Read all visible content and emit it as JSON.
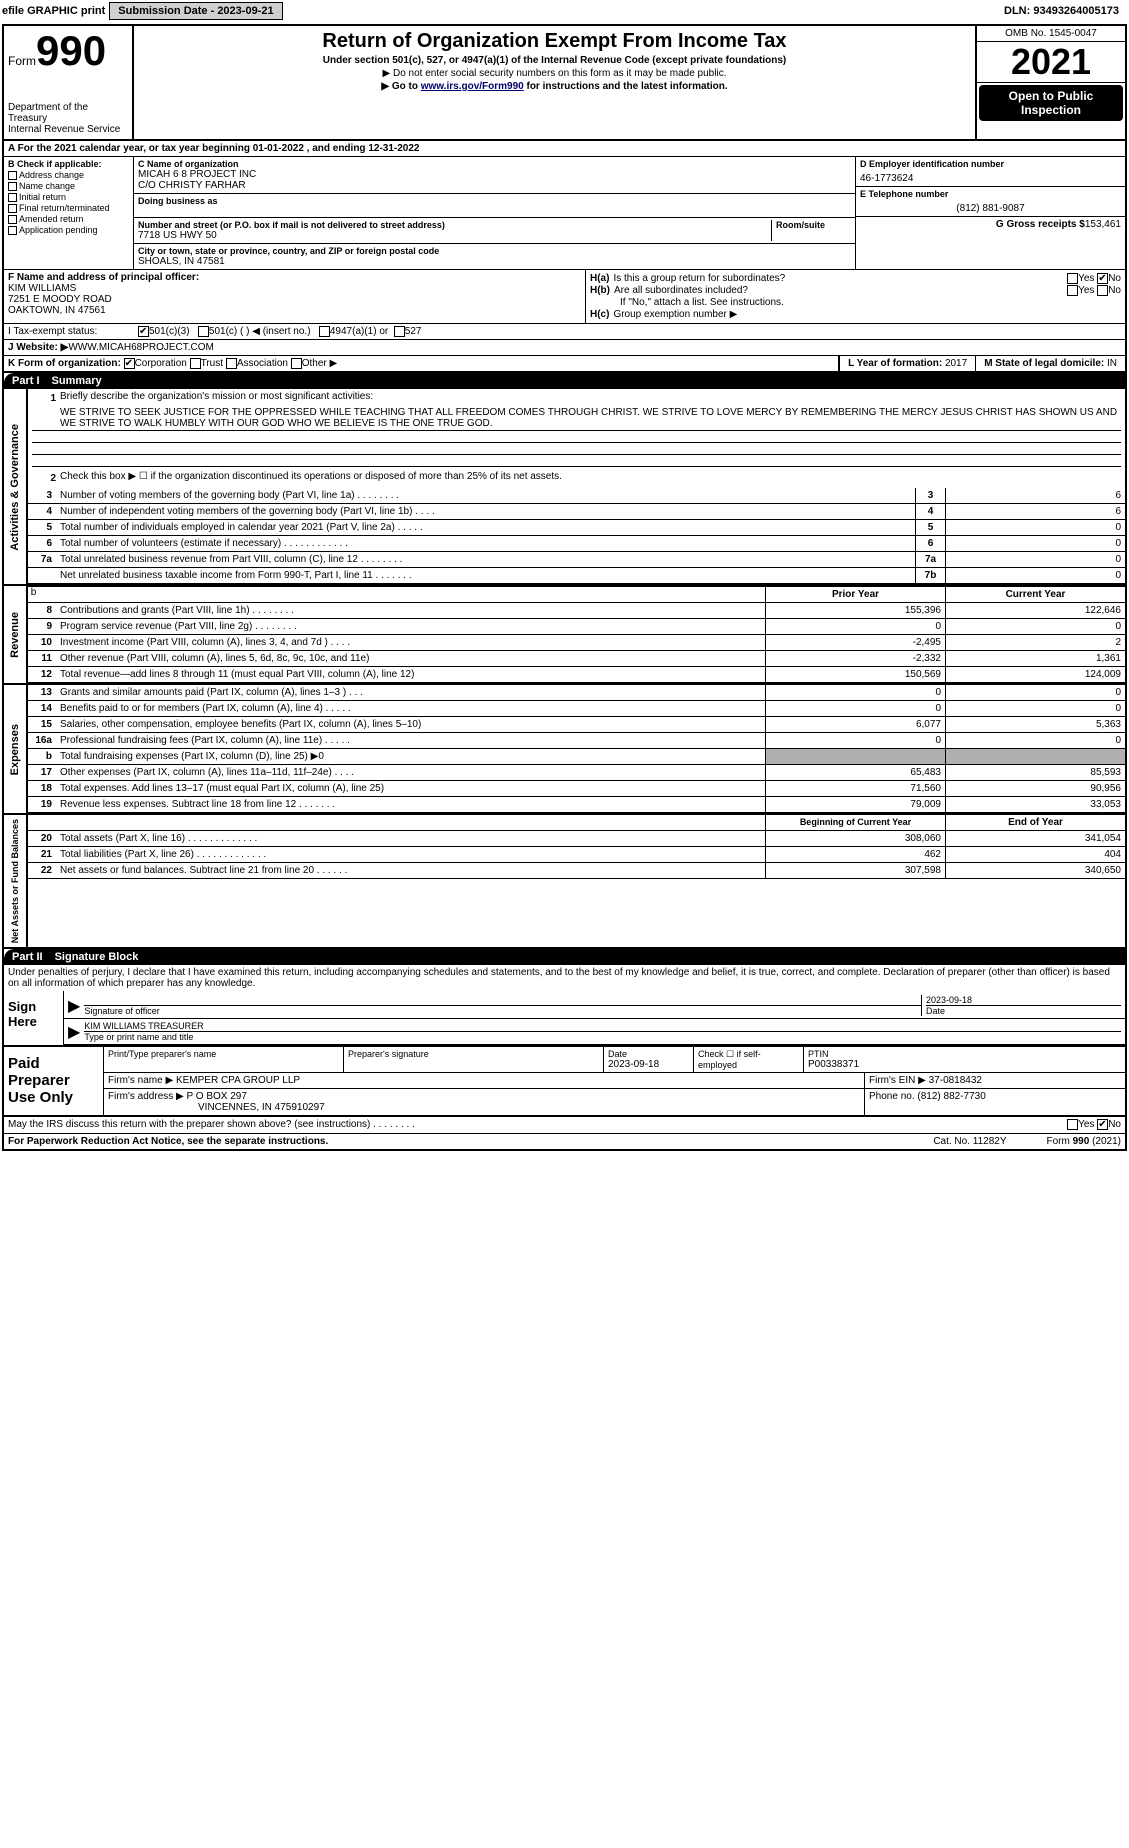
{
  "topbar": {
    "efile": "efile GRAPHIC print",
    "submission": "Submission Date - 2023-09-21",
    "dln": "DLN: 93493264005173"
  },
  "header": {
    "form_label": "Form",
    "form_number": "990",
    "title": "Return of Organization Exempt From Income Tax",
    "subtitle": "Under section 501(c), 527, or 4947(a)(1) of the Internal Revenue Code (except private foundations)",
    "note1": "▶ Do not enter social security numbers on this form as it may be made public.",
    "note2_pre": "▶ Go to ",
    "note2_link": "www.irs.gov/Form990",
    "note2_post": " for instructions and the latest information.",
    "dept": "Department of the Treasury\nInternal Revenue Service",
    "omb": "OMB No. 1545-0047",
    "year": "2021",
    "open": "Open to Public Inspection"
  },
  "row_a": {
    "text": "A For the 2021 calendar year, or tax year beginning 01-01-2022   , and ending 12-31-2022"
  },
  "col_b": {
    "label": "B Check if applicable:",
    "items": [
      "Address change",
      "Name change",
      "Initial return",
      "Final return/terminated",
      "Amended return",
      "Application pending"
    ]
  },
  "col_c": {
    "name_label": "C Name of organization",
    "name": "MICAH 6 8 PROJECT INC",
    "care_of": "C/O CHRISTY FARHAR",
    "dba_label": "Doing business as",
    "addr_label": "Number and street (or P.O. box if mail is not delivered to street address)",
    "room_label": "Room/suite",
    "address": "7718 US HWY 50",
    "city_label": "City or town, state or province, country, and ZIP or foreign postal code",
    "city": "SHOALS, IN  47581"
  },
  "col_d": {
    "ein_label": "D Employer identification number",
    "ein": "46-1773624",
    "phone_label": "E Telephone number",
    "phone": "(812) 881-9087",
    "gross_label": "G Gross receipts $",
    "gross": "153,461"
  },
  "col_f": {
    "label": "F  Name and address of principal officer:",
    "name": "KIM WILLIAMS",
    "addr1": "7251 E MOODY ROAD",
    "addr2": "OAKTOWN, IN  47561"
  },
  "col_h": {
    "ha_label": "H(a)",
    "ha_text": "Is this a group return for subordinates?",
    "hb_label": "H(b)",
    "hb_text": "Are all subordinates included?",
    "hb_note": "If \"No,\" attach a list. See instructions.",
    "hc_label": "H(c)",
    "hc_text": "Group exemption number ▶"
  },
  "row_i": {
    "label": "I   Tax-exempt status:",
    "opts": [
      "501(c)(3)",
      "501(c) (   ) ◀ (insert no.)",
      "4947(a)(1) or",
      "527"
    ]
  },
  "row_j": {
    "label": "J   Website: ▶",
    "value": " WWW.MICAH68PROJECT.COM"
  },
  "row_k": {
    "label": "K Form of organization:",
    "opts": [
      "Corporation",
      "Trust",
      "Association",
      "Other ▶"
    ]
  },
  "row_lm": {
    "l_label": "L Year of formation: ",
    "l_val": "2017",
    "m_label": "M State of legal domicile: ",
    "m_val": "IN"
  },
  "part1": {
    "label": "Part I",
    "title": "Summary"
  },
  "governance": {
    "vlabel": "Activities & Governance",
    "q1_label": "1",
    "q1_text": "Briefly describe the organization's mission or most significant activities:",
    "mission": "WE STRIVE TO SEEK JUSTICE FOR THE OPPRESSED WHILE TEACHING THAT ALL FREEDOM COMES THROUGH CHRIST. WE STRIVE TO LOVE MERCY BY REMEMBERING THE MERCY JESUS CHRIST HAS SHOWN US AND WE STRIVE TO WALK HUMBLY WITH OUR GOD WHO WE BELIEVE IS THE ONE TRUE GOD.",
    "q2": "Check this box ▶ ☐ if the organization discontinued its operations or disposed of more than 25% of its net assets.",
    "rows": [
      {
        "n": "3",
        "t": "Number of voting members of the governing body (Part VI, line 1a)   .    .    .    .    .    .    .    .",
        "box": "3",
        "v": "6"
      },
      {
        "n": "4",
        "t": "Number of independent voting members of the governing body (Part VI, line 1b)    .    .    .    .",
        "box": "4",
        "v": "6"
      },
      {
        "n": "5",
        "t": "Total number of individuals employed in calendar year 2021 (Part V, line 2a)   .    .    .    .    .",
        "box": "5",
        "v": "0"
      },
      {
        "n": "6",
        "t": "Total number of volunteers (estimate if necessary)    .    .    .    .    .    .    .    .    .    .    .    .",
        "box": "6",
        "v": "0"
      },
      {
        "n": "7a",
        "t": "Total unrelated business revenue from Part VIII, column (C), line 12   .    .    .    .    .    .    .    .",
        "box": "7a",
        "v": "0"
      },
      {
        "n": "",
        "t": "Net unrelated business taxable income from Form 990-T, Part I, line 11   .    .    .    .    .    .    .",
        "box": "7b",
        "v": "0"
      }
    ]
  },
  "revenue": {
    "vlabel": "Revenue",
    "header_prior": "Prior Year",
    "header_current": "Current Year",
    "rows": [
      {
        "n": "8",
        "t": "Contributions and grants (Part VIII, line 1h)    .    .    .    .    .    .    .    .",
        "p": "155,396",
        "c": "122,646"
      },
      {
        "n": "9",
        "t": "Program service revenue (Part VIII, line 2g)   .    .    .    .    .    .    .    .",
        "p": "0",
        "c": "0"
      },
      {
        "n": "10",
        "t": "Investment income (Part VIII, column (A), lines 3, 4, and 7d )    .    .    .    .",
        "p": "-2,495",
        "c": "2"
      },
      {
        "n": "11",
        "t": "Other revenue (Part VIII, column (A), lines 5, 6d, 8c, 9c, 10c, and 11e)",
        "p": "-2,332",
        "c": "1,361"
      },
      {
        "n": "12",
        "t": "Total revenue—add lines 8 through 11 (must equal Part VIII, column (A), line 12)",
        "p": "150,569",
        "c": "124,009"
      }
    ]
  },
  "expenses": {
    "vlabel": "Expenses",
    "rows": [
      {
        "n": "13",
        "t": "Grants and similar amounts paid (Part IX, column (A), lines 1–3 )   .    .    .",
        "p": "0",
        "c": "0"
      },
      {
        "n": "14",
        "t": "Benefits paid to or for members (Part IX, column (A), line 4)   .    .    .    .    .",
        "p": "0",
        "c": "0"
      },
      {
        "n": "15",
        "t": "Salaries, other compensation, employee benefits (Part IX, column (A), lines 5–10)",
        "p": "6,077",
        "c": "5,363"
      },
      {
        "n": "16a",
        "t": "Professional fundraising fees (Part IX, column (A), line 11e)   .    .    .    .    .",
        "p": "0",
        "c": "0"
      },
      {
        "n": "b",
        "t": "Total fundraising expenses (Part IX, column (D), line 25) ▶0",
        "p": "",
        "c": "",
        "gray": true
      },
      {
        "n": "17",
        "t": "Other expenses (Part IX, column (A), lines 11a–11d, 11f–24e)    .    .    .    .",
        "p": "65,483",
        "c": "85,593"
      },
      {
        "n": "18",
        "t": "Total expenses. Add lines 13–17 (must equal Part IX, column (A), line 25)",
        "p": "71,560",
        "c": "90,956"
      },
      {
        "n": "19",
        "t": "Revenue less expenses. Subtract line 18 from line 12  .    .    .    .    .    .    .",
        "p": "79,009",
        "c": "33,053"
      }
    ]
  },
  "netassets": {
    "vlabel": "Net Assets or Fund Balances",
    "header_prior": "Beginning of Current Year",
    "header_current": "End of Year",
    "rows": [
      {
        "n": "20",
        "t": "Total assets (Part X, line 16)   .    .    .    .    .    .    .    .    .    .    .    .    .",
        "p": "308,060",
        "c": "341,054"
      },
      {
        "n": "21",
        "t": "Total liabilities (Part X, line 26)   .    .    .    .    .    .    .    .    .    .    .    .    .",
        "p": "462",
        "c": "404"
      },
      {
        "n": "22",
        "t": "Net assets or fund balances. Subtract line 21 from line 20   .    .    .    .    .    .",
        "p": "307,598",
        "c": "340,650"
      }
    ]
  },
  "part2": {
    "label": "Part II",
    "title": "Signature Block",
    "declaration": "Under penalties of perjury, I declare that I have examined this return, including accompanying schedules and statements, and to the best of my knowledge and belief, it is true, correct, and complete. Declaration of preparer (other than officer) is based on all information of which preparer has any knowledge."
  },
  "sign": {
    "label": "Sign Here",
    "sig_label": "Signature of officer",
    "date_label": "Date",
    "date": "2023-09-18",
    "name": "KIM WILLIAMS TREASURER",
    "name_label": "Type or print name and title"
  },
  "preparer": {
    "label": "Paid Preparer Use Only",
    "h1": "Print/Type preparer's name",
    "h2": "Preparer's signature",
    "h3": "Date",
    "date": "2023-09-18",
    "h4": "Check ☐ if self-employed",
    "h5": "PTIN",
    "ptin": "P00338371",
    "firm_label": "Firm's name    ▶",
    "firm": "KEMPER CPA GROUP LLP",
    "ein_label": "Firm's EIN ▶",
    "ein": "37-0818432",
    "addr_label": "Firm's address ▶",
    "addr": "P O BOX 297",
    "addr2": "VINCENNES, IN  475910297",
    "phone_label": "Phone no.",
    "phone": "(812) 882-7730"
  },
  "footer": {
    "discuss": "May the IRS discuss this return with the preparer shown above? (see instructions)    .    .    .    .    .    .    .    .",
    "pra": "For Paperwork Reduction Act Notice, see the separate instructions.",
    "cat": "Cat. No. 11282Y",
    "form": "Form 990 (2021)"
  }
}
